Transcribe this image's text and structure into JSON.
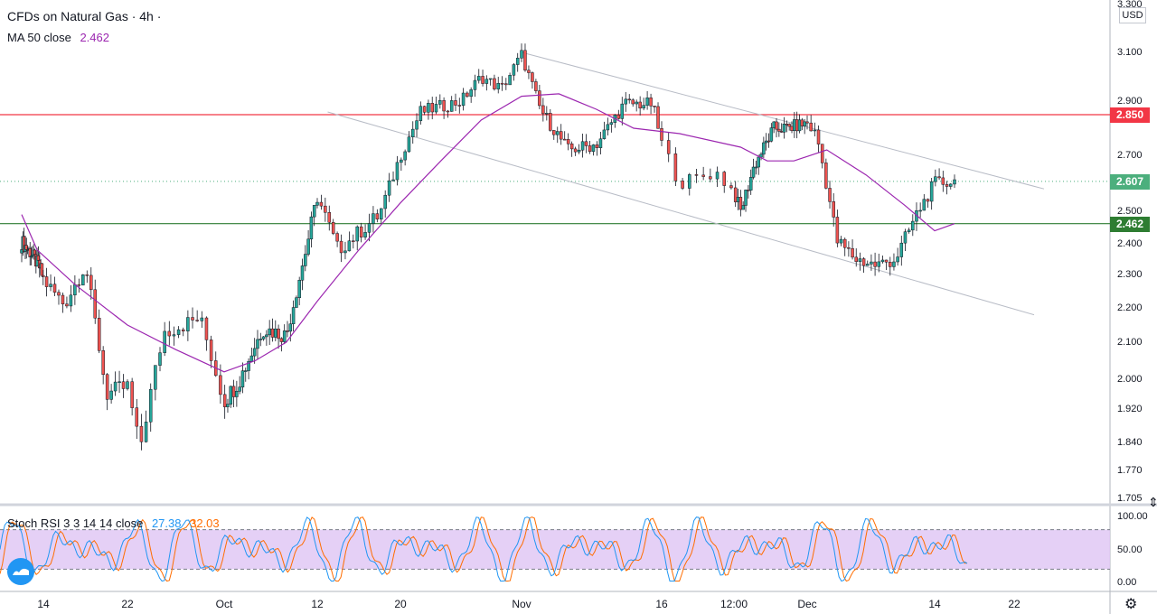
{
  "header": {
    "symbol": "CFDs on Natural Gas · 4h ·",
    "ma_label": "MA 50 close",
    "ma_value": "2.462",
    "ma_color": "#9c27b0"
  },
  "indicator": {
    "label": "Stoch RSI 3 3 14 14 close",
    "k_value": "27.38",
    "d_value": "32.03",
    "k_color": "#2196f3",
    "d_color": "#ff6d00",
    "levels": [
      "100.00",
      "50.00",
      "0.00"
    ]
  },
  "price_axis": {
    "currency": "USD",
    "ticks": [
      "3.300",
      "3.100",
      "2.900",
      "2.700",
      "2.500",
      "2.400",
      "2.300",
      "2.200",
      "2.100",
      "2.000",
      "1.920",
      "1.840",
      "1.770",
      "1.705"
    ]
  },
  "price_tags": [
    {
      "label": "2.850",
      "value": 2.85,
      "color": "#f23645"
    },
    {
      "label": "2.607",
      "value": 2.607,
      "color": "#4caf7d"
    },
    {
      "label": "2.462",
      "value": 2.462,
      "color": "#2e7d32"
    }
  ],
  "time_axis": {
    "labels": [
      "14",
      "22",
      "Oct",
      "12",
      "20",
      "Nov",
      "16",
      "12:00",
      "Dec",
      "14",
      "22"
    ]
  },
  "chart_data": {
    "type": "candlestick",
    "title": "CFDs on Natural Gas · 4h",
    "series": [
      {
        "name": "MA 50 close",
        "color": "#9c27b0"
      }
    ],
    "horizontal_lines": [
      {
        "value": 2.85,
        "color": "#f23645"
      },
      {
        "value": 2.462,
        "color": "#2e7d32"
      }
    ],
    "last_price": 2.607,
    "key_points": [
      {
        "x": "Sep 10",
        "close": 2.37
      },
      {
        "x": "Sep 13",
        "close": 2.32
      },
      {
        "x": "Sep 16",
        "close": 2.21
      },
      {
        "x": "Sep 18",
        "close": 2.33
      },
      {
        "x": "Sep 20",
        "close": 1.96
      },
      {
        "x": "Sep 22",
        "close": 1.98
      },
      {
        "x": "Sep 23",
        "close": 1.82
      },
      {
        "x": "Sep 25",
        "close": 2.13
      },
      {
        "x": "Sep 28",
        "close": 2.17
      },
      {
        "x": "Sep 30",
        "close": 1.94
      },
      {
        "x": "Oct 2",
        "close": 2.0
      },
      {
        "x": "Oct 5",
        "close": 2.14
      },
      {
        "x": "Oct 8",
        "close": 2.12
      },
      {
        "x": "Oct 10",
        "close": 2.32
      },
      {
        "x": "Oct 12",
        "close": 2.55
      },
      {
        "x": "Oct 14",
        "close": 2.38
      },
      {
        "x": "Oct 18",
        "close": 2.49
      },
      {
        "x": "Oct 20",
        "close": 2.7
      },
      {
        "x": "Oct 22",
        "close": 2.86
      },
      {
        "x": "Oct 26",
        "close": 2.9
      },
      {
        "x": "Oct 28",
        "close": 3.0
      },
      {
        "x": "Oct 30",
        "close": 2.95
      },
      {
        "x": "Nov 1",
        "close": 3.09
      },
      {
        "x": "Nov 3",
        "close": 2.87
      },
      {
        "x": "Nov 6",
        "close": 2.72
      },
      {
        "x": "Nov 9",
        "close": 2.74
      },
      {
        "x": "Nov 12",
        "close": 2.89
      },
      {
        "x": "Nov 15",
        "close": 2.89
      },
      {
        "x": "Nov 17",
        "close": 2.6
      },
      {
        "x": "Nov 19",
        "close": 2.64
      },
      {
        "x": "Nov 21",
        "close": 2.5
      },
      {
        "x": "Nov 23",
        "close": 2.66
      },
      {
        "x": "Nov 26",
        "close": 2.8
      },
      {
        "x": "Nov 28",
        "close": 2.8
      },
      {
        "x": "Dec 1",
        "close": 2.82
      },
      {
        "x": "Dec 2",
        "close": 2.77
      },
      {
        "x": "Dec 4",
        "close": 2.41
      },
      {
        "x": "Dec 6",
        "close": 2.35
      },
      {
        "x": "Dec 8",
        "close": 2.33
      },
      {
        "x": "Dec 10",
        "close": 2.35
      },
      {
        "x": "Dec 12",
        "close": 2.48
      },
      {
        "x": "Dec 14",
        "close": 2.6
      },
      {
        "x": "Dec 16",
        "close": 2.607
      }
    ],
    "ma_points": [
      {
        "x": "Sep 7",
        "y": 2.49
      },
      {
        "x": "Sep 12",
        "y": 2.38
      },
      {
        "x": "Sep 17",
        "y": 2.27
      },
      {
        "x": "Sep 22",
        "y": 2.15
      },
      {
        "x": "Sep 26",
        "y": 2.08
      },
      {
        "x": "Sep 30",
        "y": 2.02
      },
      {
        "x": "Oct 4",
        "y": 2.05
      },
      {
        "x": "Oct 8",
        "y": 2.1
      },
      {
        "x": "Oct 12",
        "y": 2.22
      },
      {
        "x": "Oct 16",
        "y": 2.38
      },
      {
        "x": "Oct 20",
        "y": 2.53
      },
      {
        "x": "Oct 24",
        "y": 2.68
      },
      {
        "x": "Oct 28",
        "y": 2.83
      },
      {
        "x": "Nov 1",
        "y": 2.92
      },
      {
        "x": "Nov 5",
        "y": 2.93
      },
      {
        "x": "Nov 9",
        "y": 2.87
      },
      {
        "x": "Nov 13",
        "y": 2.8
      },
      {
        "x": "Nov 17",
        "y": 2.78
      },
      {
        "x": "Nov 21",
        "y": 2.73
      },
      {
        "x": "Nov 25",
        "y": 2.68
      },
      {
        "x": "Nov 29",
        "y": 2.68
      },
      {
        "x": "Dec 3",
        "y": 2.72
      },
      {
        "x": "Dec 7",
        "y": 2.63
      },
      {
        "x": "Dec 11",
        "y": 2.52
      },
      {
        "x": "Dec 14",
        "y": 2.44
      },
      {
        "x": "Dec 16",
        "y": 2.462
      }
    ],
    "trend_lines": [
      {
        "from": {
          "x": "Nov 1",
          "y": 3.1
        },
        "to": {
          "x": "Dec 25",
          "y": 2.58
        }
      },
      {
        "from": {
          "x": "Oct 13",
          "y": 2.86
        },
        "to": {
          "x": "Dec 24",
          "y": 2.18
        }
      }
    ],
    "stoch_rsi": {
      "k": 27.38,
      "d": 32.03,
      "upper": 80,
      "lower": 20
    },
    "ylim": [
      1.705,
      3.3
    ],
    "grid": true
  }
}
